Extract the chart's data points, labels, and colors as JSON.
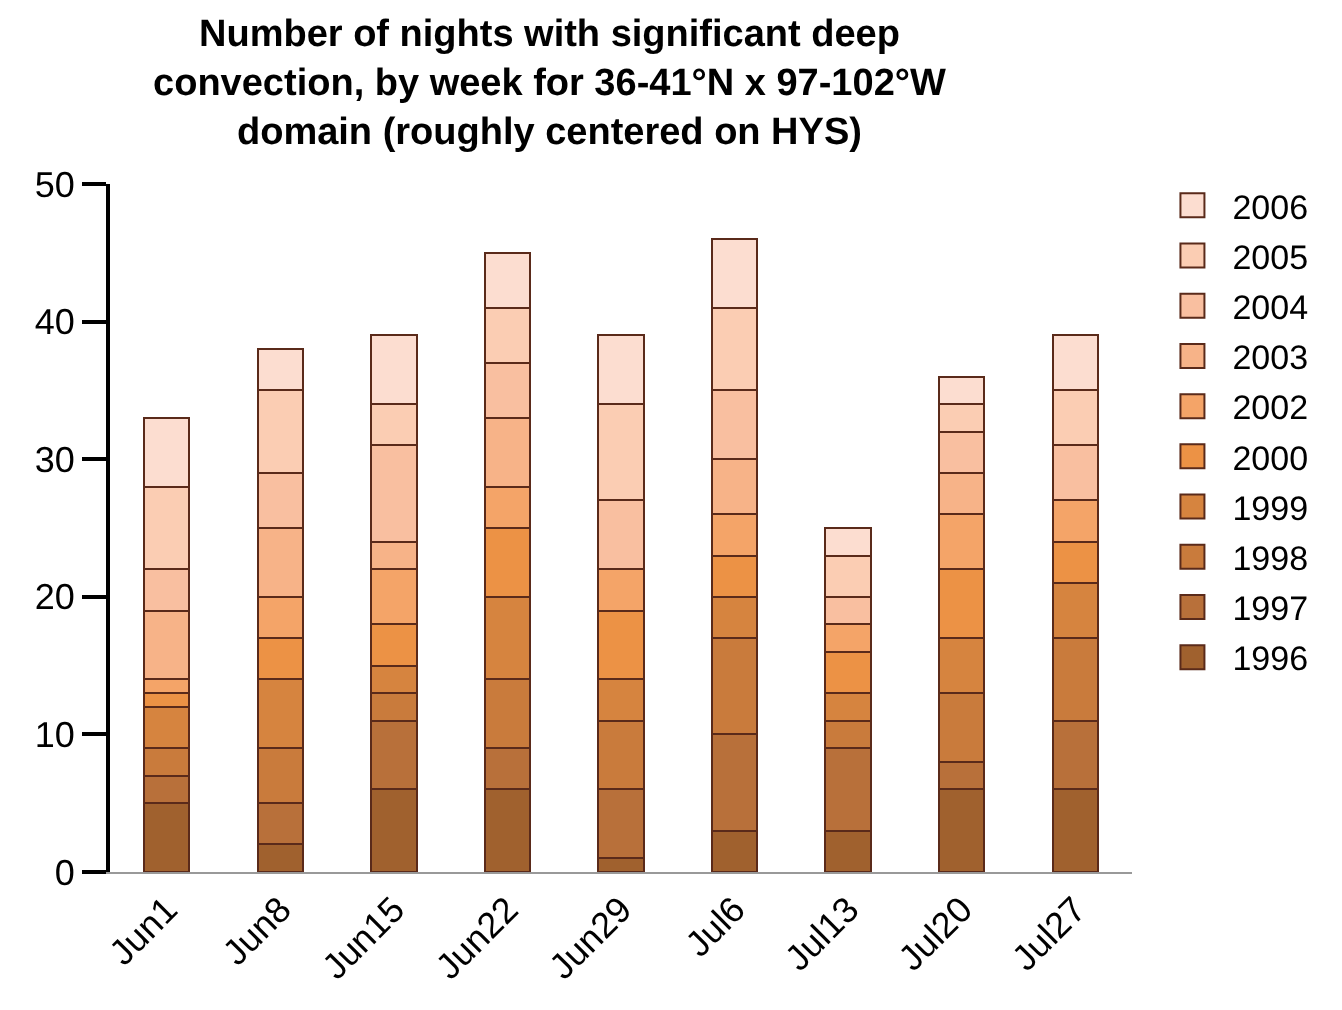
{
  "chart_data": {
    "type": "bar",
    "stacked": true,
    "title": "Number of nights with significant deep convection, by week for 36-41°N x 97-102°W domain (roughly centered on HYS)",
    "categories": [
      "Jun1",
      "Jun8",
      "Jun15",
      "Jun22",
      "Jun29",
      "Jul6",
      "Jul13",
      "Jul20",
      "Jul27"
    ],
    "ylim": [
      0,
      50
    ],
    "yticks": [
      0,
      10,
      20,
      30,
      40,
      50
    ],
    "grid": false,
    "legend": "right",
    "series": [
      {
        "name": "1996",
        "color": "#a0612e",
        "values": [
          5,
          2,
          6,
          6,
          1,
          3,
          3,
          6,
          6
        ]
      },
      {
        "name": "1997",
        "color": "#b8703a",
        "values": [
          2,
          3,
          5,
          3,
          5,
          7,
          6,
          2,
          5
        ]
      },
      {
        "name": "1998",
        "color": "#c97b3c",
        "values": [
          2,
          4,
          2,
          5,
          5,
          7,
          2,
          5,
          6
        ]
      },
      {
        "name": "1999",
        "color": "#d6843f",
        "values": [
          3,
          5,
          2,
          6,
          3,
          3,
          2,
          4,
          4
        ]
      },
      {
        "name": "2000",
        "color": "#ec9245",
        "values": [
          1,
          3,
          3,
          5,
          5,
          3,
          3,
          5,
          3
        ]
      },
      {
        "name": "2002",
        "color": "#f4a468",
        "values": [
          1,
          3,
          4,
          3,
          3,
          3,
          2,
          4,
          3
        ]
      },
      {
        "name": "2003",
        "color": "#f7b388",
        "values": [
          5,
          5,
          2,
          5,
          0,
          4,
          0,
          3,
          0
        ]
      },
      {
        "name": "2004",
        "color": "#f9bfa0",
        "values": [
          3,
          4,
          7,
          4,
          5,
          5,
          2,
          3,
          4
        ]
      },
      {
        "name": "2005",
        "color": "#fbcdb3",
        "values": [
          6,
          6,
          3,
          4,
          7,
          6,
          3,
          2,
          4
        ]
      },
      {
        "name": "2006",
        "color": "#fcddd0",
        "values": [
          5,
          3,
          5,
          4,
          5,
          5,
          2,
          2,
          4
        ]
      }
    ]
  }
}
